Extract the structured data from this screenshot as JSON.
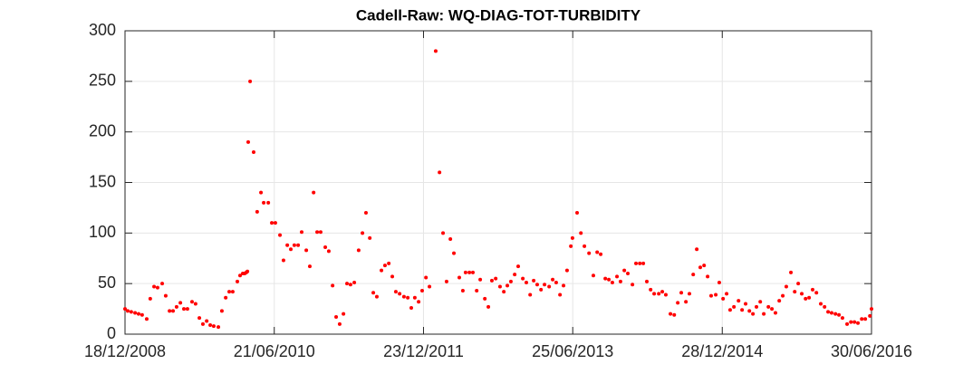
{
  "chart_data": {
    "type": "scatter",
    "title": "Cadell-Raw: WQ-DIAG-TOT-TURBIDITY",
    "color": "#ff0000",
    "grid": true,
    "xlim": [
      "18/12/2008",
      "30/06/2016"
    ],
    "xticks": [
      "18/12/2008",
      "21/06/2010",
      "23/12/2011",
      "25/06/2013",
      "28/12/2014",
      "30/06/2016"
    ],
    "ylim": [
      0,
      300
    ],
    "yticks": [
      0,
      50,
      100,
      150,
      200,
      250,
      300
    ],
    "x": [
      "18/12/2008",
      "28/12/2008",
      "10/01/2009",
      "24/01/2009",
      "06/02/2009",
      "19/02/2009",
      "08/03/2009",
      "21/03/2009",
      "04/04/2009",
      "17/04/2009",
      "04/05/2009",
      "17/05/2009",
      "31/05/2009",
      "13/06/2009",
      "26/06/2009",
      "10/07/2009",
      "23/07/2009",
      "05/08/2009",
      "22/08/2009",
      "04/09/2009",
      "18/09/2009",
      "01/10/2009",
      "15/10/2009",
      "28/10/2009",
      "10/11/2009",
      "27/11/2009",
      "10/12/2009",
      "24/12/2009",
      "06/01/2010",
      "19/01/2010",
      "05/02/2010",
      "15/02/2010",
      "25/02/2010",
      "04/03/2010",
      "10/03/2010",
      "14/03/2010",
      "17/03/2010",
      "24/03/2010",
      "06/04/2010",
      "19/04/2010",
      "03/05/2010",
      "13/05/2010",
      "30/05/2010",
      "12/06/2010",
      "25/06/2010",
      "12/07/2010",
      "25/07/2010",
      "08/08/2010",
      "21/08/2010",
      "03/09/2010",
      "17/09/2010",
      "30/09/2010",
      "17/10/2010",
      "30/10/2010",
      "13/11/2010",
      "26/11/2010",
      "09/12/2010",
      "26/12/2010",
      "08/01/2011",
      "22/01/2011",
      "04/02/2011",
      "17/02/2011",
      "03/03/2011",
      "16/03/2011",
      "29/03/2011",
      "12/04/2011",
      "28/04/2011",
      "12/05/2011",
      "25/05/2011",
      "08/06/2011",
      "21/06/2011",
      "04/07/2011",
      "21/07/2011",
      "03/08/2011",
      "17/08/2011",
      "30/08/2011",
      "12/09/2011",
      "26/09/2011",
      "12/10/2011",
      "26/10/2011",
      "08/11/2011",
      "21/11/2011",
      "05/12/2011",
      "18/12/2011",
      "01/01/2012",
      "14/01/2012",
      "06/02/2012",
      "20/02/2012",
      "04/03/2012",
      "17/03/2012",
      "31/03/2012",
      "13/04/2012",
      "03/05/2012",
      "16/05/2012",
      "26/05/2012",
      "09/06/2012",
      "22/06/2012",
      "06/07/2012",
      "19/07/2012",
      "05/08/2012",
      "18/08/2012",
      "31/08/2012",
      "14/09/2012",
      "30/09/2012",
      "14/10/2012",
      "27/10/2012",
      "09/11/2012",
      "23/11/2012",
      "06/12/2012",
      "23/12/2012",
      "05/01/2013",
      "19/01/2013",
      "01/02/2013",
      "14/02/2013",
      "28/02/2013",
      "13/03/2013",
      "30/03/2013",
      "12/04/2013",
      "25/04/2013",
      "09/05/2013",
      "22/05/2013",
      "04/06/2013",
      "18/06/2013",
      "24/06/2013",
      "11/07/2013",
      "25/07/2013",
      "07/08/2013",
      "24/08/2013",
      "09/09/2013",
      "23/09/2013",
      "06/10/2013",
      "23/10/2013",
      "05/11/2013",
      "18/11/2013",
      "05/12/2013",
      "18/12/2013",
      "01/01/2014",
      "14/01/2014",
      "31/01/2014",
      "13/02/2014",
      "27/02/2014",
      "12/03/2014",
      "25/03/2014",
      "08/04/2014",
      "21/04/2014",
      "08/05/2014",
      "21/05/2014",
      "03/06/2014",
      "20/06/2014",
      "04/07/2014",
      "17/07/2014",
      "30/07/2014",
      "16/08/2014",
      "29/08/2014",
      "12/09/2014",
      "25/09/2014",
      "08/10/2014",
      "22/10/2014",
      "04/11/2014",
      "17/11/2014",
      "04/12/2014",
      "17/12/2014",
      "31/12/2014",
      "13/01/2015",
      "26/01/2015",
      "09/02/2015",
      "26/02/2015",
      "11/03/2015",
      "24/03/2015",
      "07/04/2015",
      "20/04/2015",
      "03/05/2015",
      "17/05/2015",
      "30/05/2015",
      "16/06/2015",
      "29/06/2015",
      "12/07/2015",
      "26/07/2015",
      "08/08/2015",
      "21/08/2015",
      "07/09/2015",
      "21/09/2015",
      "04/10/2015",
      "17/10/2015",
      "31/10/2015",
      "13/11/2015",
      "26/11/2015",
      "10/12/2015",
      "26/12/2015",
      "09/01/2016",
      "22/01/2016",
      "04/02/2016",
      "18/02/2016",
      "02/03/2016",
      "15/03/2016",
      "01/04/2016",
      "15/04/2016",
      "28/04/2016",
      "11/05/2016",
      "25/05/2016",
      "07/06/2016",
      "24/06/2016",
      "30/06/2016"
    ],
    "values": [
      25,
      23,
      22,
      21,
      20,
      19,
      15,
      35,
      47,
      46,
      50,
      38,
      23,
      23,
      27,
      31,
      25,
      25,
      32,
      30,
      16,
      10,
      13,
      9,
      8,
      7,
      23,
      36,
      42,
      42,
      52,
      58,
      60,
      60,
      61,
      62,
      190,
      250,
      180,
      121,
      140,
      130,
      130,
      110,
      110,
      98,
      73,
      88,
      84,
      88,
      88,
      101,
      83,
      67,
      140,
      101,
      101,
      86,
      82,
      48,
      17,
      10,
      20,
      50,
      49,
      51,
      83,
      100,
      120,
      95,
      41,
      37,
      63,
      68,
      70,
      57,
      42,
      40,
      37,
      36,
      26,
      36,
      32,
      43,
      56,
      47,
      280,
      160,
      100,
      52,
      94,
      80,
      56,
      43,
      61,
      61,
      61,
      43,
      54,
      35,
      27,
      53,
      55,
      47,
      42,
      48,
      52,
      59,
      67,
      55,
      51,
      39,
      53,
      49,
      44,
      49,
      47,
      54,
      51,
      39,
      48,
      63,
      87,
      95,
      120,
      100,
      87,
      80,
      58,
      81,
      79,
      55,
      54,
      51,
      57,
      52,
      63,
      60,
      49,
      70,
      70,
      70,
      52,
      44,
      40,
      40,
      42,
      39,
      20,
      19,
      31,
      41,
      32,
      40,
      59,
      84,
      66,
      68,
      57,
      38,
      39,
      51,
      35,
      40,
      24,
      27,
      33,
      24,
      30,
      23,
      20,
      27,
      32,
      20,
      27,
      25,
      21,
      33,
      38,
      47,
      61,
      42,
      50,
      40,
      35,
      36,
      44,
      41,
      30,
      27,
      22,
      21,
      20,
      19,
      16,
      10,
      12,
      12,
      11,
      15,
      15,
      18,
      25
    ]
  }
}
